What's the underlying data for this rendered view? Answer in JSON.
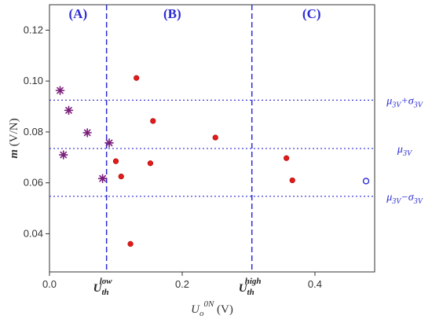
{
  "chart_data": {
    "type": "scatter",
    "xlabel": {
      "main": "U",
      "sub": "o",
      "sup": "0N",
      "unit": "(V)"
    },
    "ylabel": {
      "main": "m",
      "unit": "(V/N)"
    },
    "xlim": [
      0,
      0.49
    ],
    "ylim": [
      0.025,
      0.13
    ],
    "x_ticks": [
      {
        "value": 0.0,
        "label": "0.0"
      },
      {
        "value": 0.2,
        "label": "0.2"
      },
      {
        "value": 0.4,
        "label": "0.4"
      }
    ],
    "y_ticks": [
      {
        "value": 0.04,
        "label": "0.04"
      },
      {
        "value": 0.06,
        "label": "0.06"
      },
      {
        "value": 0.08,
        "label": "0.08"
      },
      {
        "value": 0.1,
        "label": "0.10"
      },
      {
        "value": 0.12,
        "label": "0.12"
      }
    ],
    "region_labels": [
      {
        "text": "(A)",
        "x": 0.043
      },
      {
        "text": "(B)",
        "x": 0.185
      },
      {
        "text": "(C)",
        "x": 0.395
      }
    ],
    "thresholds": [
      {
        "value": 0.086,
        "base": "U",
        "sub": "th",
        "sup": "low"
      },
      {
        "value": 0.305,
        "base": "U",
        "sup": "high",
        "sub": "th"
      }
    ],
    "reference_lines": [
      {
        "value": 0.0925,
        "label_main": "μ",
        "label_sub": "3V",
        "label_rest": "+σ",
        "label_sub2": "3V"
      },
      {
        "value": 0.0735,
        "label_main": "μ",
        "label_sub": "3V",
        "label_rest": "",
        "label_sub2": ""
      },
      {
        "value": 0.0547,
        "label_main": "μ",
        "label_sub": "3V",
        "label_rest": "−σ",
        "label_sub2": "3V"
      }
    ],
    "series": [
      {
        "marker": "star",
        "color": "#7a1d7a",
        "points": [
          [
            0.016,
            0.0963
          ],
          [
            0.029,
            0.0885
          ],
          [
            0.057,
            0.0797
          ],
          [
            0.09,
            0.0757
          ],
          [
            0.021,
            0.071
          ],
          [
            0.08,
            0.0617
          ]
        ]
      },
      {
        "marker": "filled-circle",
        "color": "#e41a1a",
        "points": [
          [
            0.131,
            0.1012
          ],
          [
            0.156,
            0.0843
          ],
          [
            0.25,
            0.0778
          ],
          [
            0.1,
            0.0685
          ],
          [
            0.152,
            0.0677
          ],
          [
            0.108,
            0.0625
          ],
          [
            0.122,
            0.036
          ],
          [
            0.357,
            0.0697
          ],
          [
            0.366,
            0.061
          ]
        ]
      },
      {
        "marker": "open-circle",
        "color": "#2b2bd6",
        "points": [
          [
            0.477,
            0.0607
          ]
        ]
      }
    ]
  }
}
